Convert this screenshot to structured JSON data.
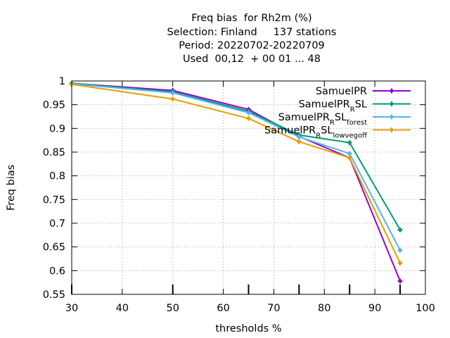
{
  "chart_data": {
    "type": "line",
    "title_lines": [
      "Freq bias  for Rh2m (%)",
      "Selection: Finland     137 stations",
      "Period: 20220702-20220709",
      "Used  00,12  + 00 01 ... 48"
    ],
    "xlabel": "thresholds %",
    "ylabel": "Freq bias",
    "xlim": [
      30,
      100
    ],
    "ylim": [
      0.55,
      1
    ],
    "x_ticks": [
      30,
      40,
      50,
      60,
      70,
      80,
      90,
      100
    ],
    "y_ticks": [
      0.55,
      0.6,
      0.65,
      0.7,
      0.75,
      0.8,
      0.85,
      0.9,
      0.95,
      1
    ],
    "y_tick_labels": [
      "0.55",
      "0.6",
      "0.65",
      "0.7",
      "0.75",
      "0.8",
      "0.85",
      "0.9",
      "0.95",
      "1"
    ],
    "grid": true,
    "legend_position": "top-right",
    "x": [
      30,
      50,
      65,
      75,
      85,
      95
    ],
    "series": [
      {
        "name": "SamuelPR",
        "legend_parts": [
          [
            "SamuelPR",
            ""
          ]
        ],
        "color": "#9400d3",
        "values": [
          0.995,
          0.98,
          0.94,
          0.883,
          0.838,
          0.578
        ]
      },
      {
        "name": "SamuelPR_RSL",
        "legend_parts": [
          [
            "SamuelPR",
            ""
          ],
          [
            "R",
            "sub"
          ],
          [
            "SL",
            ""
          ]
        ],
        "color": "#009e73",
        "values": [
          0.995,
          0.977,
          0.936,
          0.886,
          0.87,
          0.686
        ]
      },
      {
        "name": "SamuelPR_RSL_forest",
        "legend_parts": [
          [
            "SamuelPR",
            ""
          ],
          [
            "R",
            "sub"
          ],
          [
            "SL",
            ""
          ],
          [
            "forest",
            "sub"
          ]
        ],
        "color": "#56b4e9",
        "values": [
          0.994,
          0.975,
          0.933,
          0.882,
          0.847,
          0.643
        ]
      },
      {
        "name": "SamuelPR_RSL_lowvegoff",
        "legend_parts": [
          [
            "SamuelPR",
            ""
          ],
          [
            "R",
            "sub"
          ],
          [
            "SL",
            ""
          ],
          [
            "lowvegoff",
            "sub"
          ]
        ],
        "color": "#e69f00",
        "values": [
          0.993,
          0.962,
          0.921,
          0.872,
          0.838,
          0.616
        ]
      }
    ]
  }
}
